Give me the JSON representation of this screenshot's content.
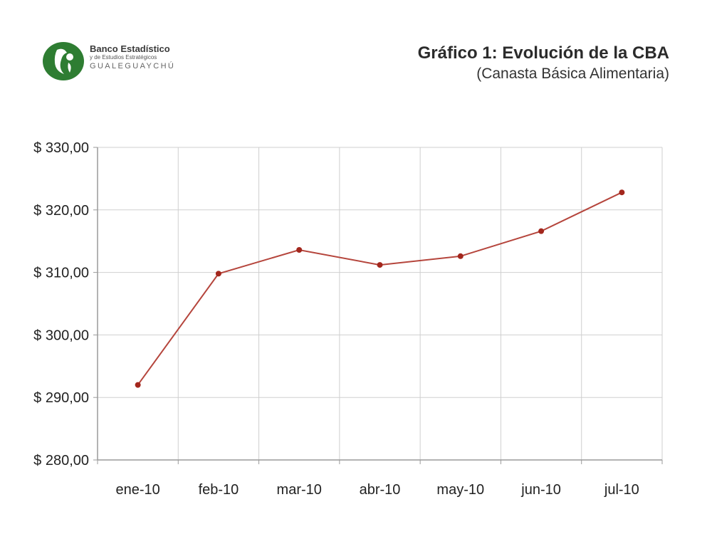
{
  "logo": {
    "line1": "Banco Estadístico",
    "line2": "y de Estudios Estratégicos",
    "line3": "GUALEGUAYCHÚ",
    "color": "#2e7d32"
  },
  "chart_data": {
    "type": "line",
    "title": "Gráfico 1: Evolución de la CBA",
    "subtitle": "(Canasta Básica Alimentaria)",
    "xlabel": "",
    "ylabel": "",
    "categories": [
      "ene-10",
      "feb-10",
      "mar-10",
      "abr-10",
      "may-10",
      "jun-10",
      "jul-10"
    ],
    "series": [
      {
        "values": [
          292.0,
          309.8,
          313.6,
          311.2,
          312.6,
          316.6,
          322.8
        ]
      }
    ],
    "ylim": [
      280,
      330
    ],
    "yticks": [
      280,
      290,
      300,
      310,
      320,
      330
    ],
    "ytick_labels": [
      "$ 280,00",
      "$ 290,00",
      "$ 300,00",
      "$ 310,00",
      "$ 320,00",
      "$ 330,00"
    ],
    "grid": true,
    "line_color": "#b5453c",
    "marker_color": "#a3271d"
  }
}
